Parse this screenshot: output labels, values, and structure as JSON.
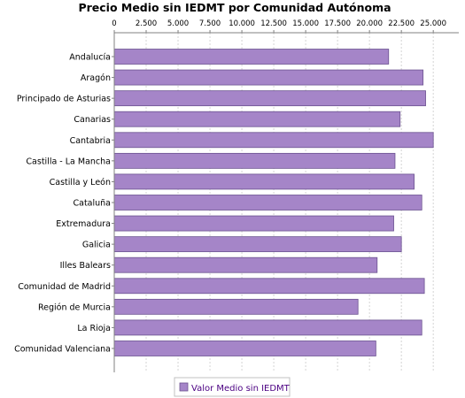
{
  "chart_data": {
    "type": "bar",
    "orientation": "horizontal",
    "title": "Precio Medio sin IEDMT por Comunidad Autónoma",
    "xlabel": "",
    "ylabel": "",
    "xlim": [
      0,
      27000
    ],
    "ticks": [
      "0",
      "2.500",
      "5.000",
      "7.500",
      "10.000",
      "12.500",
      "15.000",
      "17.500",
      "20.000",
      "22.500",
      "25.000"
    ],
    "tick_values": [
      0,
      2500,
      5000,
      7500,
      10000,
      12500,
      15000,
      17500,
      20000,
      22500,
      25000
    ],
    "tick_position": "top",
    "grid": true,
    "legend_position": "bottom",
    "bar_color": "#a585c8",
    "bar_border_color": "#6b5290",
    "categories": [
      "Andalucía",
      "Aragón",
      "Principado de Asturias",
      "Canarias",
      "Cantabria",
      "Castilla - La Mancha",
      "Castilla y León",
      "Cataluña",
      "Extremadura",
      "Galicia",
      "Illes Balears",
      "Comunidad de Madrid",
      "Región de Murcia",
      "La Rioja",
      "Comunidad Valenciana"
    ],
    "series": [
      {
        "name": "Valor Medio sin IEDMT",
        "values": [
          21500,
          24200,
          24400,
          22400,
          25000,
          22000,
          23500,
          24100,
          21900,
          22500,
          20600,
          24300,
          19100,
          24100,
          20500
        ]
      }
    ]
  }
}
